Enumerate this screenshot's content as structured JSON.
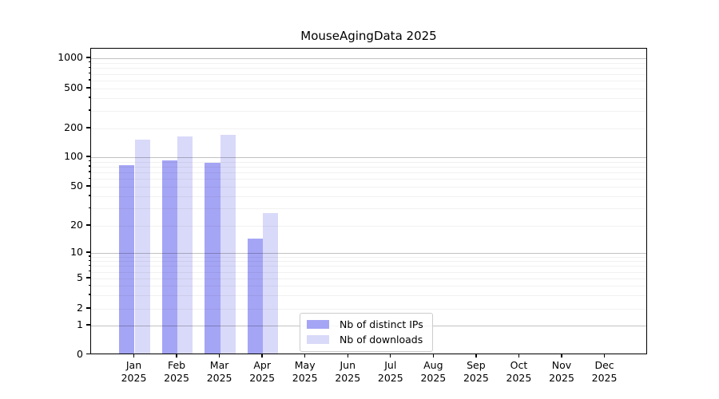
{
  "title": "MouseAgingData 2025",
  "colors": {
    "distinct_ips": "#a5a5f5",
    "downloads": "#d9d9f9",
    "grid_major": "#c4c4c4",
    "grid_minor": "#ececec",
    "legend_border": "#cccccc"
  },
  "legend": {
    "items": [
      {
        "label": "Nb of distinct IPs",
        "color": "#a5a5f5"
      },
      {
        "label": "Nb of downloads",
        "color": "#d9d9f9"
      }
    ]
  },
  "chart_data": {
    "type": "bar",
    "title": "MouseAgingData 2025",
    "xlabel": "",
    "ylabel": "",
    "categories": [
      "Jan 2025",
      "Feb 2025",
      "Mar 2025",
      "Apr 2025",
      "May 2025",
      "Jun 2025",
      "Jul 2025",
      "Aug 2025",
      "Sep 2025",
      "Oct 2025",
      "Nov 2025",
      "Dec 2025"
    ],
    "series": [
      {
        "name": "Nb of distinct IPs",
        "color": "#a5a5f5",
        "values": [
          80,
          90,
          85,
          14,
          0,
          0,
          0,
          0,
          0,
          0,
          0,
          0
        ]
      },
      {
        "name": "Nb of downloads",
        "color": "#d9d9f9",
        "values": [
          148,
          160,
          166,
          26,
          0,
          0,
          0,
          0,
          0,
          0,
          0,
          0
        ]
      }
    ],
    "yscale": "symlog",
    "yticks": [
      0,
      1,
      2,
      5,
      10,
      20,
      50,
      100,
      200,
      500,
      1000
    ],
    "yminorticks": [
      3,
      4,
      6,
      7,
      8,
      9,
      30,
      40,
      60,
      70,
      80,
      90,
      300,
      400,
      600,
      700,
      800,
      900
    ],
    "ylim": [
      0,
      1250
    ],
    "grid": "horizontal",
    "legend_position": "lower center"
  }
}
